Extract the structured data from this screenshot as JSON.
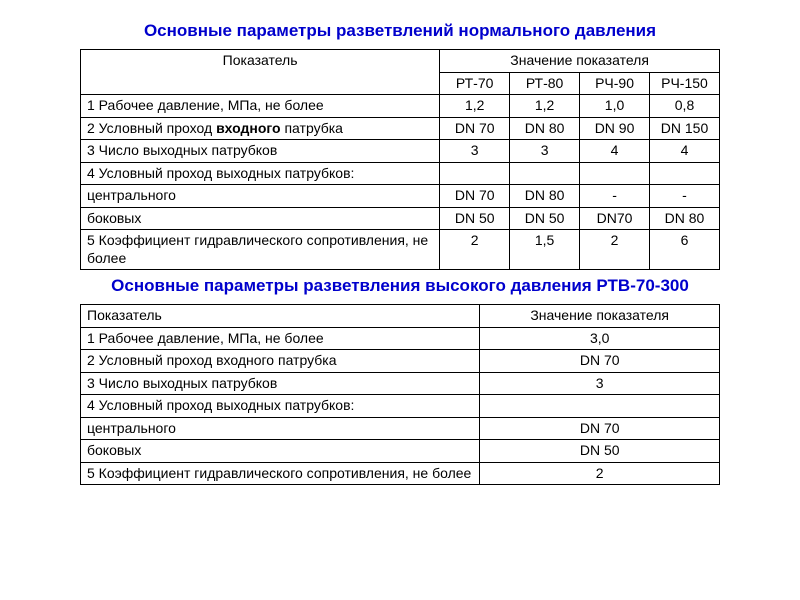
{
  "title1": "Основные параметры разветвлений нормального давления",
  "title2": "Основные параметры разветвления высокого давления РТВ-70-300",
  "table1": {
    "header_param": "Показатель",
    "header_value": "Значение показателя",
    "models": [
      "РТ-70",
      "РТ-80",
      "РЧ-90",
      "РЧ-150"
    ],
    "rows": [
      {
        "label": "1 Рабочее давление, МПа, не более",
        "v": [
          "1,2",
          "1,2",
          "1,0",
          "0,8"
        ]
      },
      {
        "label_pre": "2 Условный проход ",
        "label_bold": "входного",
        "label_post": " патрубка",
        "v": [
          "DN 70",
          "DN 80",
          "DN 90",
          "DN 150"
        ]
      },
      {
        "label": "3 Число выходных патрубков",
        "v": [
          "3",
          "3",
          "4",
          "4"
        ]
      },
      {
        "label": "4 Условный проход выходных патрубков:",
        "v": [
          "",
          "",
          "",
          ""
        ]
      },
      {
        "label": "центрального",
        "indent": "c",
        "v": [
          "DN 70",
          "DN 80",
          "-",
          "-"
        ]
      },
      {
        "label": "боковых",
        "indent": "c",
        "v": [
          "DN 50",
          "DN 50",
          "DN70",
          "DN 80"
        ]
      },
      {
        "label": "5 Коэффициент гидравлического сопротивления, не более",
        "v": [
          "2",
          "1,5",
          "2",
          "6"
        ]
      }
    ]
  },
  "table2": {
    "header_param": "Показатель",
    "header_value": "Значение показателя",
    "rows": [
      {
        "label": "1 Рабочее давление, МПа, не более",
        "v": "3,0"
      },
      {
        "label": "2 Условный проход входного патрубка",
        "v": "DN 70"
      },
      {
        "label": "3 Число выходных патрубков",
        "v": "3"
      },
      {
        "label": "4 Условный проход выходных патрубков:",
        "v": ""
      },
      {
        "label": "центрального",
        "indent": "r",
        "v": "DN 70"
      },
      {
        "label": "боковых",
        "indent": "r",
        "v": "DN 50"
      },
      {
        "label": "5 Коэффициент гидравлического сопротивления, не более",
        "v": "2"
      }
    ]
  },
  "style": {
    "title_color": "#0000cc",
    "border_color": "#000000",
    "bg_color": "#ffffff",
    "font_size_body": 14,
    "font_size_title": 17,
    "font_family": "Arial"
  }
}
